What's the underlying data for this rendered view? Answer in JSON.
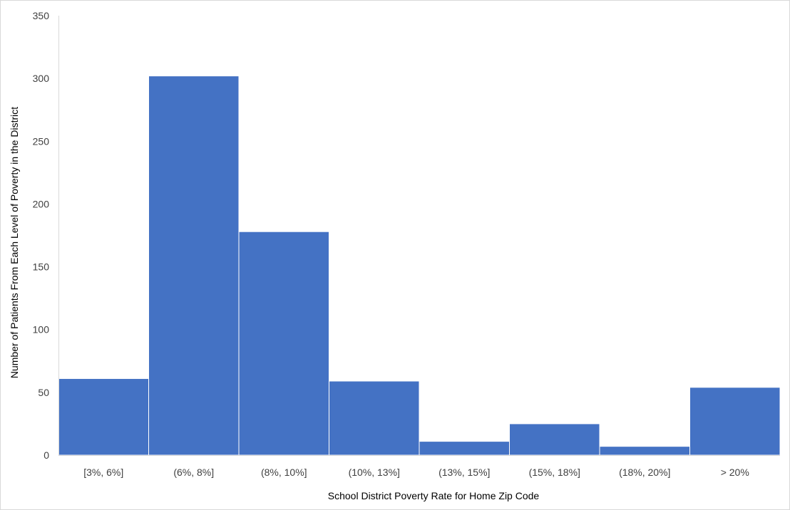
{
  "chart_data": {
    "type": "bar",
    "title": "",
    "xlabel": "School District Poverty Rate for Home Zip Code",
    "ylabel": "Number of Patients From Each Level of Poverty in the District",
    "categories": [
      "[3%, 6%]",
      "(6%, 8%]",
      "(8%, 10%]",
      "(10%, 13%]",
      "(13%, 15%]",
      "(15%, 18%]",
      "(18%, 20%]",
      "> 20%"
    ],
    "values": [
      61,
      302,
      178,
      59,
      11,
      25,
      7,
      54
    ],
    "ylim": [
      0,
      350
    ],
    "yticks": [
      0,
      50,
      100,
      150,
      200,
      250,
      300,
      350
    ],
    "grid": false,
    "legend": "none",
    "bar_color": "#4472C4",
    "bar_edge_color": "#ffffff"
  }
}
